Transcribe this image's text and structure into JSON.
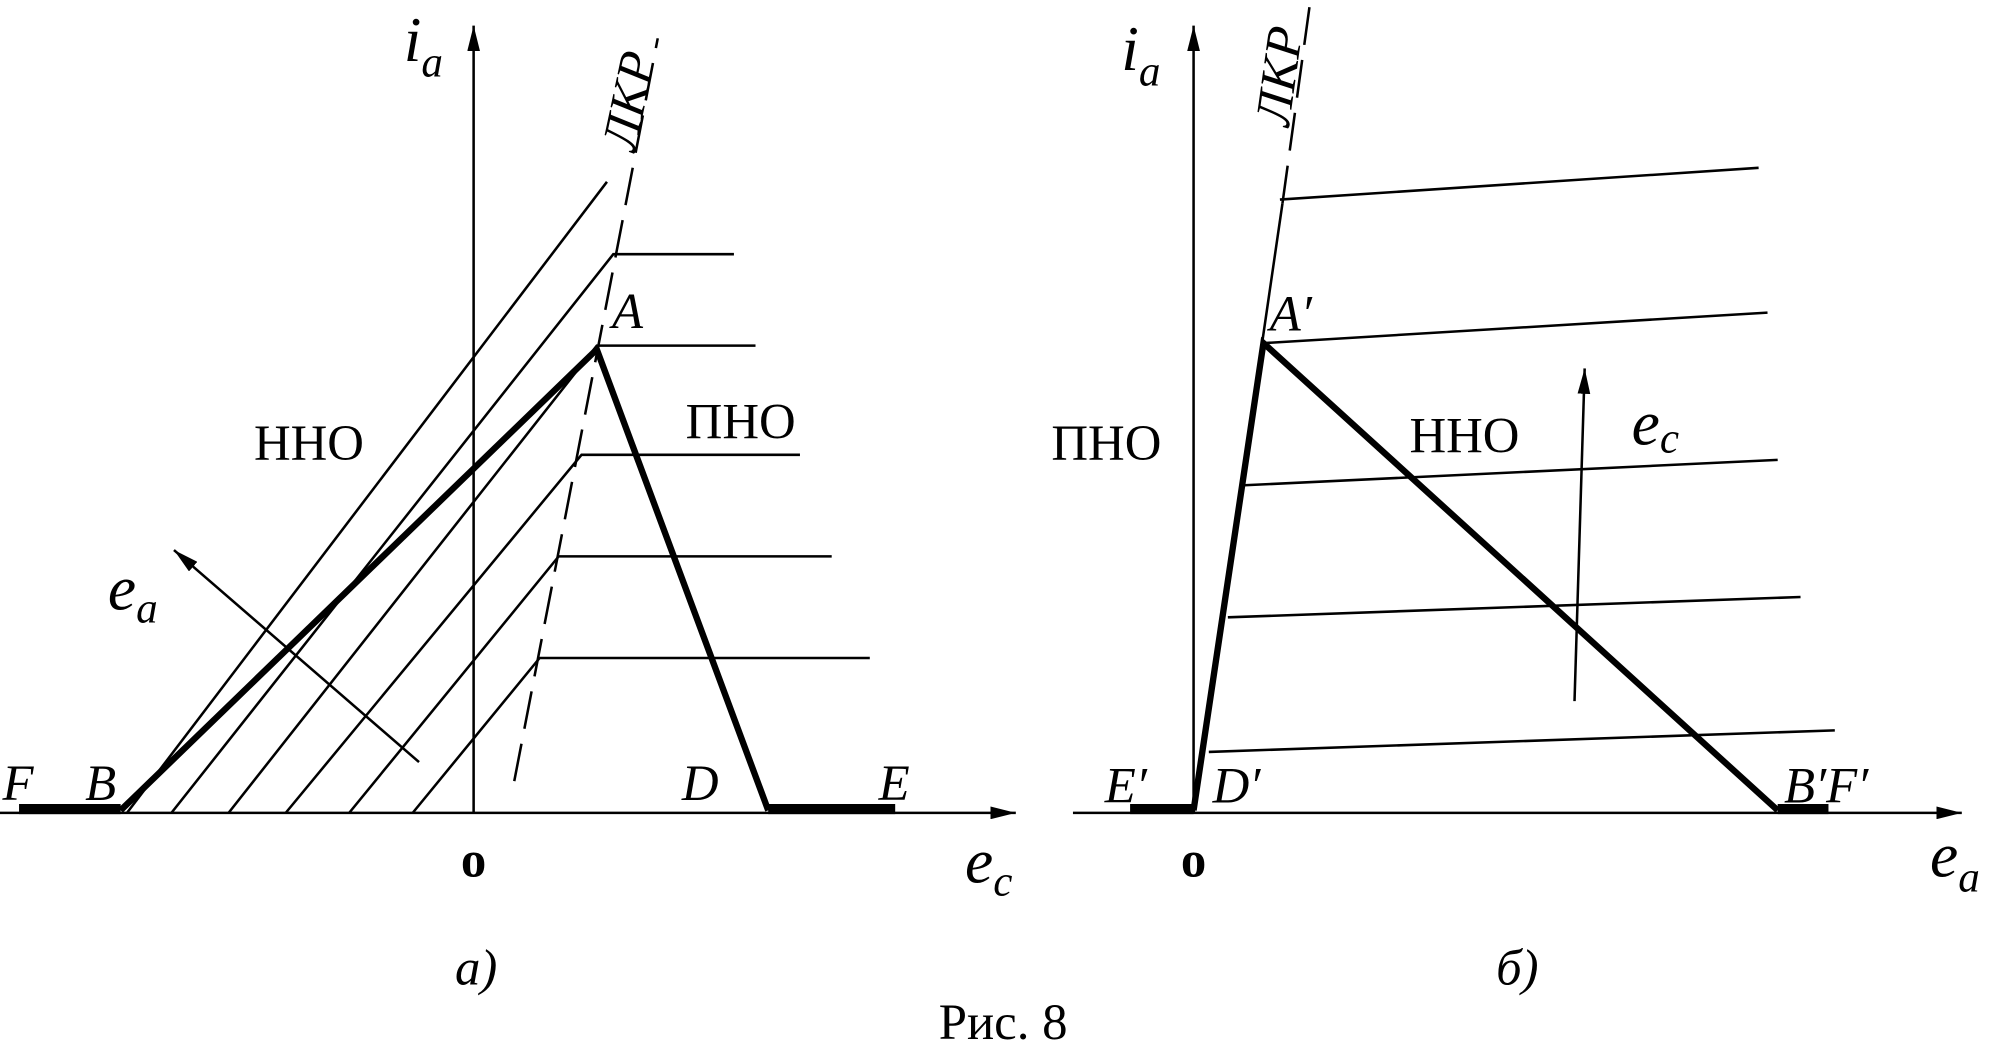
{
  "figure": {
    "caption": "Рис. 8",
    "panel_a": {
      "label": "а)",
      "y_axis": {
        "symbol": "i",
        "subscript": "a"
      },
      "x_axis": {
        "symbol": "e",
        "subscript": "c"
      },
      "origin": "o",
      "curve_label": "ЛКР",
      "regions": [
        "ННО",
        "ПНО"
      ],
      "points": [
        "F",
        "B",
        "A",
        "D",
        "E"
      ],
      "arrow": {
        "symbol": "e",
        "subscript": "a"
      }
    },
    "panel_b": {
      "label": "б)",
      "y_axis": {
        "symbol": "i",
        "subscript": "a"
      },
      "x_axis": {
        "symbol": "e",
        "subscript": "a"
      },
      "origin": "o",
      "curve_label": "ЛКР",
      "regions": [
        "ПНО",
        "ННО"
      ],
      "points": [
        "E′",
        "D′",
        "A′",
        "B′F′"
      ],
      "arrow": {
        "symbol": "e",
        "subscript": "c"
      }
    }
  }
}
